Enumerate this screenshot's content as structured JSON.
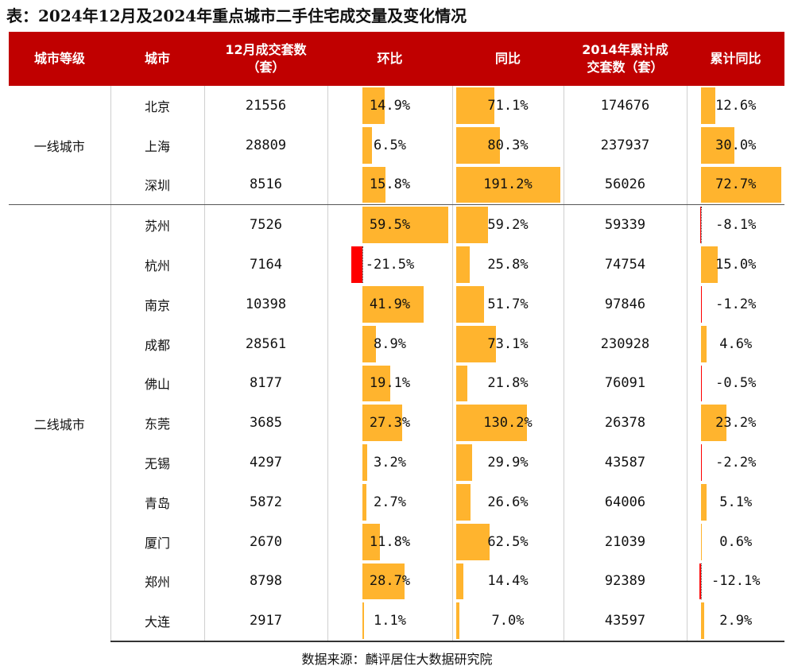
{
  "title": "表：2024年12月及2024年重点城市二手住宅成交量及变化情况",
  "headers": [
    "城市等级",
    "城市",
    "12月成交套数\n（套）",
    "环比",
    "同比",
    "2014年累计成\n交套数（套）",
    "累计同比"
  ],
  "tiers": [
    "一线城市",
    "二线城市"
  ],
  "rows": [
    {
      "city": "北京",
      "tier": 0,
      "units": "21556",
      "mom": "14.9%",
      "yoy": "71.1%",
      "cum": "174676",
      "cum_yoy": "12.6%"
    },
    {
      "city": "上海",
      "tier": 0,
      "units": "28809",
      "mom": "6.5%",
      "yoy": "80.3%",
      "cum": "237937",
      "cum_yoy": "30.0%"
    },
    {
      "city": "深圳",
      "tier": 0,
      "units": "8516",
      "mom": "15.8%",
      "yoy": "191.2%",
      "cum": "56026",
      "cum_yoy": "72.7%"
    },
    {
      "city": "苏州",
      "tier": 1,
      "units": "7526",
      "mom": "59.5%",
      "yoy": "59.2%",
      "cum": "59339",
      "cum_yoy": "-8.1%"
    },
    {
      "city": "杭州",
      "tier": 1,
      "units": "7164",
      "mom": "-21.5%",
      "yoy": "25.8%",
      "cum": "74754",
      "cum_yoy": "15.0%"
    },
    {
      "city": "南京",
      "tier": 1,
      "units": "10398",
      "mom": "41.9%",
      "yoy": "51.7%",
      "cum": "97846",
      "cum_yoy": "-1.2%"
    },
    {
      "city": "成都",
      "tier": 1,
      "units": "28561",
      "mom": "8.9%",
      "yoy": "73.1%",
      "cum": "230928",
      "cum_yoy": "4.6%"
    },
    {
      "city": "佛山",
      "tier": 1,
      "units": "8177",
      "mom": "19.1%",
      "yoy": "21.8%",
      "cum": "76091",
      "cum_yoy": "-0.5%"
    },
    {
      "city": "东莞",
      "tier": 1,
      "units": "3685",
      "mom": "27.3%",
      "yoy": "130.2%",
      "cum": "26378",
      "cum_yoy": "23.2%"
    },
    {
      "city": "无锡",
      "tier": 1,
      "units": "4297",
      "mom": "3.2%",
      "yoy": "29.9%",
      "cum": "43587",
      "cum_yoy": "-2.2%"
    },
    {
      "city": "青岛",
      "tier": 1,
      "units": "5872",
      "mom": "2.7%",
      "yoy": "26.6%",
      "cum": "64006",
      "cum_yoy": "5.1%"
    },
    {
      "city": "厦门",
      "tier": 1,
      "units": "2670",
      "mom": "11.8%",
      "yoy": "62.5%",
      "cum": "21039",
      "cum_yoy": "0.6%"
    },
    {
      "city": "郑州",
      "tier": 1,
      "units": "8798",
      "mom": "28.7%",
      "yoy": "14.4%",
      "cum": "92389",
      "cum_yoy": "-12.1%"
    },
    {
      "city": "大连",
      "tier": 1,
      "units": "2917",
      "mom": "1.1%",
      "yoy": "7.0%",
      "cum": "43597",
      "cum_yoy": "2.9%"
    }
  ],
  "source": "数据来源：麟评居住大数据研究院",
  "colors": {
    "header_bg": "#c00000",
    "bar_positive": "#ffb42e",
    "bar_negative": "#ff0000"
  }
}
